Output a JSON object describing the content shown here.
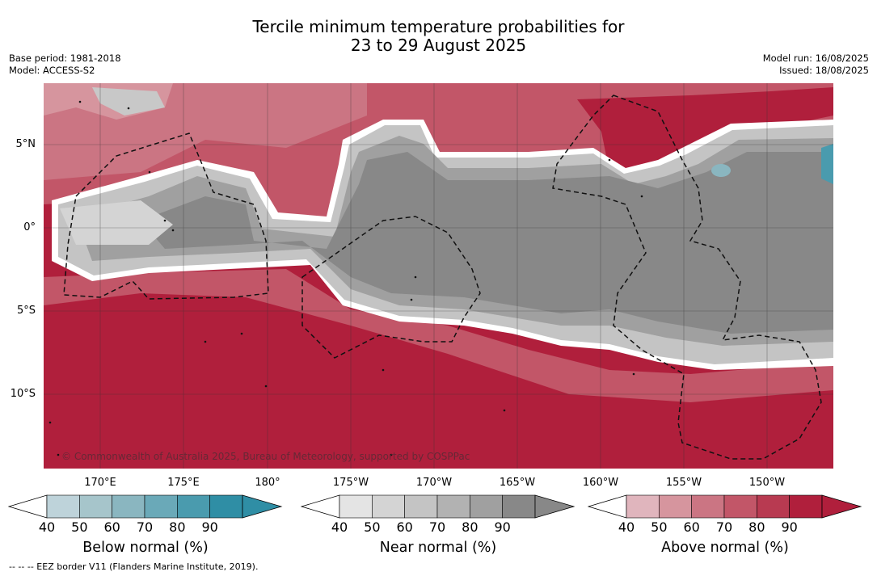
{
  "title_line1": "Tercile minimum temperature probabilities for",
  "title_line2": "23 to 29 August 2025",
  "base_period": "Base period: 1981-2018",
  "model": "Model: ACCESS-S2",
  "model_run": "Model run: 16/08/2025",
  "issued": "Issued: 18/08/2025",
  "lat_labels": [
    "5°N",
    "0°",
    "5°S",
    "10°S"
  ],
  "lon_labels": [
    "170°E",
    "175°E",
    "180°",
    "175°W",
    "170°W",
    "165°W",
    "160°W",
    "155°W",
    "150°W"
  ],
  "copyright": "© Commonwealth of Australia 2025, Bureau of Meteorology, supported by COSPPac",
  "colorbar_ticks": [
    "40",
    "50",
    "60",
    "70",
    "80",
    "90"
  ],
  "colorbars": [
    {
      "label": "Below normal (%)",
      "colors": [
        "#bed3da",
        "#a6c5cb",
        "#8ab6c0",
        "#6aa9b8",
        "#4a9bae",
        "#2f8ea5"
      ]
    },
    {
      "label": "Near normal (%)",
      "colors": [
        "#e4e4e4",
        "#d4d4d4",
        "#c4c4c4",
        "#b2b2b2",
        "#a0a0a0",
        "#888888"
      ]
    },
    {
      "label": "Above normal (%)",
      "colors": [
        "#e0b5bd",
        "#d6959e",
        "#cb7583",
        "#c25668",
        "#b83a51",
        "#b01f3c"
      ]
    }
  ],
  "footer": "-- -- -- EEZ border V11 (Flanders Marine Institute, 2019)."
}
